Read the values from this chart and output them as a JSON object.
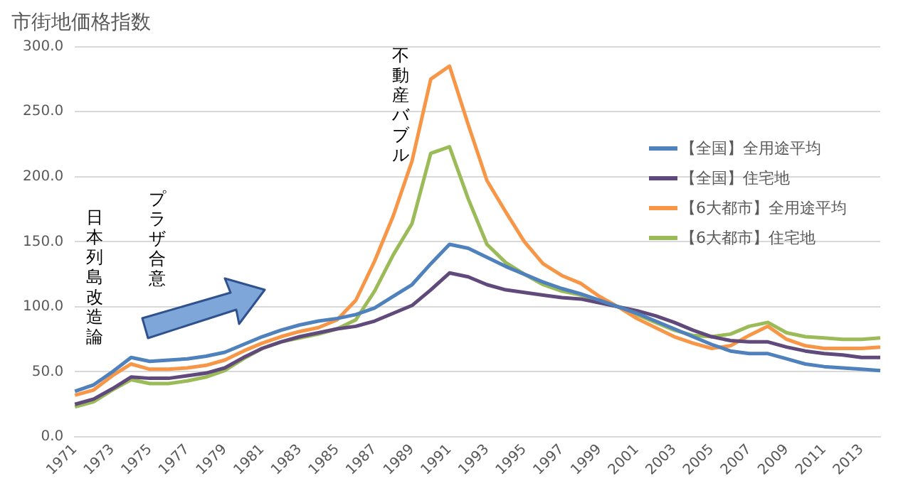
{
  "chart_data": {
    "type": "line",
    "title": "市街地価格指数",
    "categories": [
      "1971",
      null,
      "1973",
      null,
      "1975",
      null,
      "1977",
      null,
      "1979",
      null,
      "1981",
      null,
      "1983",
      null,
      "1985",
      null,
      "1987",
      null,
      "1989",
      null,
      "1991",
      null,
      "1993",
      null,
      "1995",
      null,
      "1997",
      null,
      "1999",
      null,
      "2001",
      null,
      "2003",
      null,
      "2005",
      null,
      "2007",
      null,
      "2009",
      null,
      "2011",
      null,
      "2013",
      null
    ],
    "series": [
      {
        "name": "【全国】全用途平均",
        "color": "#4f81bd",
        "values": [
          35,
          40,
          50,
          61,
          58,
          59,
          60,
          62,
          65,
          71,
          77,
          82,
          86,
          89,
          91,
          94,
          99,
          108,
          117,
          133,
          148,
          145,
          138,
          131,
          125,
          119,
          114,
          110,
          105,
          100,
          95,
          89,
          83,
          77,
          71,
          66,
          64,
          64,
          60,
          56,
          54,
          53,
          52,
          51
        ]
      },
      {
        "name": "【全国】住宅地",
        "color": "#604a7b",
        "values": [
          25,
          29,
          37,
          46,
          45,
          45,
          47,
          49,
          53,
          61,
          68,
          73,
          77,
          80,
          83,
          85,
          89,
          95,
          101,
          113,
          126,
          123,
          117,
          113,
          111,
          109,
          107,
          106,
          103,
          100,
          97,
          93,
          88,
          82,
          77,
          74,
          73,
          73,
          69,
          66,
          64,
          63,
          61,
          61
        ]
      },
      {
        "name": "【6大都市】全用途平均",
        "color": "#f79646",
        "values": [
          32,
          36,
          47,
          56,
          52,
          52,
          53,
          55,
          59,
          66,
          72,
          77,
          81,
          84,
          90,
          105,
          135,
          170,
          212,
          275,
          285,
          240,
          197,
          173,
          150,
          133,
          124,
          118,
          108,
          100,
          91,
          84,
          77,
          72,
          68,
          70,
          78,
          85,
          75,
          70,
          68,
          68,
          68,
          69
        ]
      },
      {
        "name": "【6大都市】住宅地",
        "color": "#9bbb59",
        "values": [
          23,
          27,
          36,
          44,
          41,
          41,
          43,
          46,
          51,
          60,
          68,
          73,
          76,
          79,
          83,
          90,
          112,
          140,
          164,
          218,
          223,
          183,
          148,
          134,
          125,
          117,
          112,
          109,
          104,
          100,
          94,
          88,
          82,
          78,
          77,
          79,
          85,
          88,
          80,
          77,
          76,
          75,
          75,
          76
        ]
      }
    ],
    "ylim": [
      0,
      300
    ],
    "yticks": [
      {
        "value": 0,
        "label": "0.0"
      },
      {
        "value": 50,
        "label": "50.0"
      },
      {
        "value": 100,
        "label": "100.0"
      },
      {
        "value": 150,
        "label": "150.0"
      },
      {
        "value": 200,
        "label": "200.0"
      },
      {
        "value": 250,
        "label": "250.0"
      },
      {
        "value": 300,
        "label": "300.0"
      }
    ],
    "grid": "y",
    "legend": "right",
    "marker": "none",
    "line_style": "solid",
    "annotations": [
      "日本列島改造論",
      "プラザ合意",
      "不動産バブル"
    ]
  }
}
